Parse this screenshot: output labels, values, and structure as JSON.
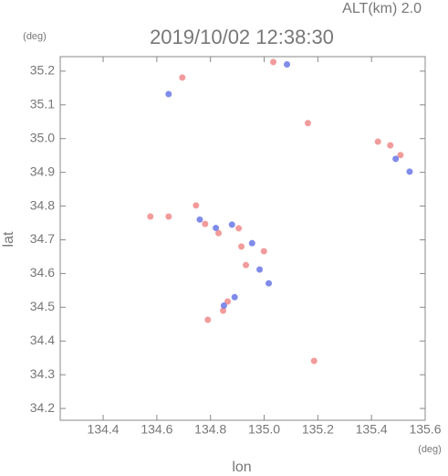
{
  "chart_data": {
    "type": "scatter",
    "title": "2019/10/02 12:38:30",
    "subtitle": "ALT(km) 2.0",
    "x_label": "lon",
    "x_unit": "(deg)",
    "y_label": "lat",
    "y_unit": "(deg)",
    "xlim": [
      134.24,
      135.6
    ],
    "ylim": [
      34.165,
      35.243
    ],
    "xticks": [
      134.4,
      134.6,
      134.8,
      {
        "value": 135,
        "label": "135.0"
      },
      135.2,
      135.4,
      135.6
    ],
    "yticks": [
      34.2,
      34.3,
      34.4,
      34.5,
      34.6,
      34.7,
      34.8,
      34.9,
      {
        "value": 35,
        "label": "35.0"
      },
      35.1,
      35.2
    ],
    "series": [
      {
        "color": "#f08a8a",
        "x": [
          134.695,
          135.034,
          135.163,
          135.424,
          135.47,
          135.508,
          134.576,
          134.644,
          134.746,
          134.78,
          134.83,
          134.905,
          134.915,
          134.999,
          134.864,
          134.847,
          134.79,
          135.186,
          134.932
        ],
        "y": [
          35.181,
          35.227,
          35.046,
          34.991,
          34.98,
          34.951,
          34.769,
          34.769,
          34.802,
          34.747,
          34.72,
          34.734,
          34.68,
          34.666,
          34.517,
          34.49,
          34.463,
          34.341,
          34.625
        ]
      },
      {
        "color": "#6a78e6",
        "x": [
          134.644,
          135.085,
          135.542,
          134.76,
          134.82,
          134.88,
          134.955,
          134.983,
          135.017,
          134.85,
          134.89,
          135.49
        ],
        "y": [
          35.132,
          35.22,
          34.902,
          34.76,
          34.735,
          34.745,
          34.69,
          34.612,
          34.571,
          34.505,
          34.53,
          34.94
        ]
      }
    ]
  }
}
